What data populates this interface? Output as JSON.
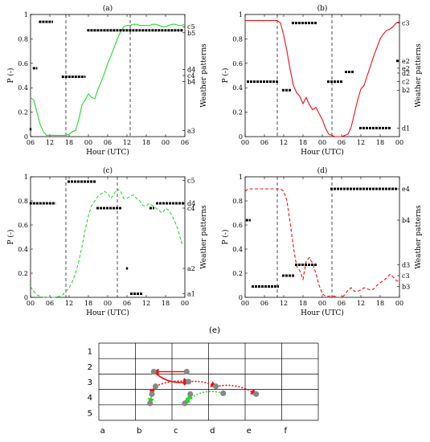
{
  "colors": {
    "green": "#22dd22",
    "red": "#ee1111",
    "black": "#000000",
    "dot": "#888888"
  },
  "chart_data": [
    {
      "type": "line",
      "title": "(a)",
      "line_style": "solid",
      "color": "#22dd22",
      "xlabel": "Hour (UTC)",
      "ylabel": "P (-)",
      "y2label": "Weather patterns",
      "xlim": [
        0,
        48
      ],
      "ylim": [
        0,
        1
      ],
      "xticks": [
        0,
        6,
        12,
        18,
        24,
        30,
        36,
        42,
        48
      ],
      "xticklabels": [
        "06",
        "12",
        "18",
        "00",
        "06",
        "12",
        "18",
        "00",
        "06"
      ],
      "yticks": [
        0,
        0.2,
        0.4,
        0.6,
        0.8,
        1
      ],
      "yticklabels": [
        "0",
        "0.2",
        "0.4",
        "0.6",
        "0.8",
        "1"
      ],
      "y2ticks": [
        0.05,
        0.45,
        0.5,
        0.55,
        0.85,
        0.9
      ],
      "y2ticklabels": [
        "a3",
        "b4",
        "c4",
        "d4",
        "b5",
        "c5"
      ],
      "vlines": [
        11,
        31
      ],
      "line": {
        "x": [
          0,
          1,
          2,
          3,
          4,
          5,
          6,
          7,
          8,
          9,
          10,
          11,
          12,
          13,
          14,
          15,
          16,
          17,
          18,
          19,
          20,
          21,
          22,
          23,
          24,
          25,
          26,
          27,
          28,
          29,
          30,
          31,
          32,
          33,
          34,
          35,
          36,
          37,
          38,
          39,
          40,
          41,
          42,
          43,
          44,
          45,
          46,
          47,
          48
        ],
        "y": [
          0.32,
          0.3,
          0.2,
          0.1,
          0.04,
          0.01,
          0.01,
          0.01,
          0.01,
          0.01,
          0.01,
          0.01,
          0.02,
          0.04,
          0.05,
          0.14,
          0.26,
          0.3,
          0.35,
          0.32,
          0.31,
          0.39,
          0.45,
          0.52,
          0.6,
          0.66,
          0.73,
          0.8,
          0.86,
          0.9,
          0.91,
          0.91,
          0.92,
          0.92,
          0.91,
          0.91,
          0.91,
          0.91,
          0.92,
          0.92,
          0.91,
          0.9,
          0.9,
          0.91,
          0.92,
          0.92,
          0.91,
          0.91,
          0.92
        ]
      },
      "patterns": [
        {
          "x0": -0.3,
          "x1": 0.3,
          "y": 0.06
        },
        {
          "x0": 0.7,
          "x1": 2.1,
          "y": 0.56
        },
        {
          "x0": 2.6,
          "x1": 7.0,
          "y": 0.94
        },
        {
          "x0": 9.7,
          "x1": 17.1,
          "y": 0.49
        },
        {
          "x0": 17.6,
          "x1": 47.4,
          "y": 0.87
        }
      ]
    },
    {
      "type": "line",
      "title": "(b)",
      "line_style": "solid",
      "color": "#ee1111",
      "xlabel": "Hour (UTC)",
      "ylabel": "P (-)",
      "y2label": "Weather patterns",
      "xlim": [
        0,
        48
      ],
      "ylim": [
        0,
        1
      ],
      "xticks": [
        0,
        6,
        12,
        18,
        24,
        30,
        36,
        42,
        48
      ],
      "xticklabels": [
        "00",
        "06",
        "12",
        "18",
        "00",
        "06",
        "12",
        "18",
        "00"
      ],
      "yticks": [
        0,
        0.2,
        0.4,
        0.6,
        0.8,
        1
      ],
      "yticklabels": [
        "0",
        "0.2",
        "0.4",
        "0.6",
        "0.8",
        "1"
      ],
      "y2ticks": [
        0.07,
        0.38,
        0.45,
        0.52,
        0.56,
        0.62,
        0.93
      ],
      "y2ticklabels": [
        "d1",
        "b2",
        "c2",
        "d2",
        "e2",
        "e2",
        "c3"
      ],
      "vlines": [
        10,
        27
      ],
      "line": {
        "x": [
          0,
          1,
          2,
          3,
          4,
          5,
          6,
          7,
          8,
          9,
          10,
          11,
          12,
          13,
          14,
          15,
          16,
          17,
          18,
          19,
          20,
          21,
          22,
          23,
          24,
          25,
          26,
          27,
          28,
          29,
          30,
          31,
          32,
          33,
          34,
          35,
          36,
          37,
          38,
          39,
          40,
          41,
          42,
          43,
          44,
          45,
          46,
          47,
          48
        ],
        "y": [
          0.95,
          0.95,
          0.95,
          0.95,
          0.95,
          0.95,
          0.95,
          0.95,
          0.95,
          0.95,
          0.95,
          0.93,
          0.83,
          0.7,
          0.55,
          0.42,
          0.36,
          0.33,
          0.27,
          0.32,
          0.26,
          0.22,
          0.24,
          0.19,
          0.14,
          0.07,
          0.02,
          0.01,
          0.0,
          0.0,
          0.0,
          0.01,
          0.02,
          0.08,
          0.19,
          0.3,
          0.39,
          0.42,
          0.5,
          0.58,
          0.66,
          0.73,
          0.8,
          0.84,
          0.87,
          0.88,
          0.9,
          0.93,
          0.94
        ]
      },
      "patterns": [
        {
          "x0": 0.5,
          "x1": 10.5,
          "y": 0.45
        },
        {
          "x0": 11.5,
          "x1": 14.5,
          "y": 0.38
        },
        {
          "x0": 14.5,
          "x1": 22.5,
          "y": 0.93
        },
        {
          "x0": 25.5,
          "x1": 30.5,
          "y": 0.45
        },
        {
          "x0": 31.0,
          "x1": 34.0,
          "y": 0.53
        },
        {
          "x0": 35.5,
          "x1": 45.5,
          "y": 0.07
        },
        {
          "x0": 47.0,
          "x1": 48.0,
          "y": 0.62
        }
      ]
    },
    {
      "type": "line",
      "title": "(c)",
      "line_style": "dashed",
      "color": "#22dd22",
      "xlabel": "Hour (UTC)",
      "ylabel": "P (-)",
      "y2label": "Weather patterns",
      "xlim": [
        0,
        48
      ],
      "ylim": [
        0,
        1
      ],
      "xticks": [
        0,
        6,
        12,
        18,
        24,
        30,
        36,
        42,
        48
      ],
      "xticklabels": [
        "00",
        "06",
        "12",
        "18",
        "00",
        "06",
        "12",
        "18",
        "00"
      ],
      "yticks": [
        0,
        0.2,
        0.4,
        0.6,
        0.8,
        1
      ],
      "yticklabels": [
        "0",
        "0.2",
        "0.4",
        "0.6",
        "0.8",
        "1"
      ],
      "y2ticks": [
        0.03,
        0.24,
        0.74,
        0.78,
        0.97
      ],
      "y2ticklabels": [
        "a1",
        "a2",
        "c4",
        "d4",
        "c5"
      ],
      "vlines": [
        11,
        27
      ],
      "line": {
        "x": [
          0,
          1,
          2,
          3,
          4,
          5,
          6,
          7,
          8,
          9,
          10,
          11,
          12,
          13,
          14,
          15,
          16,
          17,
          18,
          19,
          20,
          21,
          22,
          23,
          24,
          25,
          26,
          27,
          28,
          29,
          30,
          31,
          32,
          33,
          34,
          35,
          36,
          37,
          38,
          39,
          40,
          41,
          42,
          43,
          44,
          45,
          46,
          47,
          48
        ],
        "y": [
          0.09,
          0.05,
          0.02,
          0.01,
          0.0,
          0.0,
          0.0,
          0.0,
          0.0,
          0.01,
          0.02,
          0.05,
          0.08,
          0.13,
          0.2,
          0.3,
          0.42,
          0.56,
          0.68,
          0.76,
          0.8,
          0.84,
          0.86,
          0.88,
          0.86,
          0.82,
          0.86,
          0.9,
          0.88,
          0.82,
          0.82,
          0.84,
          0.85,
          0.82,
          0.8,
          0.76,
          0.76,
          0.78,
          0.76,
          0.74,
          0.72,
          0.7,
          0.74,
          0.72,
          0.68,
          0.62,
          0.55,
          0.45,
          0.46
        ]
      },
      "patterns": [
        {
          "x0": -0.3,
          "x1": 7.8,
          "y": 0.78
        },
        {
          "x0": 11.5,
          "x1": 20.5,
          "y": 0.96
        },
        {
          "x0": 20.5,
          "x1": 28.5,
          "y": 0.74
        },
        {
          "x0": 29.7,
          "x1": 30.3,
          "y": 0.24
        },
        {
          "x0": 31.0,
          "x1": 35.0,
          "y": 0.03
        },
        {
          "x0": 37.0,
          "x1": 38.5,
          "y": 0.74
        },
        {
          "x0": 39.0,
          "x1": 48.0,
          "y": 0.78
        }
      ]
    },
    {
      "type": "line",
      "title": "(d)",
      "line_style": "dashed",
      "color": "#ee1111",
      "xlabel": "Hour (UTC)",
      "ylabel": "P (-)",
      "y2label": "Weather patterns",
      "xlim": [
        0,
        48
      ],
      "ylim": [
        0,
        1
      ],
      "xticks": [
        0,
        6,
        12,
        18,
        24,
        30,
        36,
        42,
        48
      ],
      "xticklabels": [
        "00",
        "06",
        "12",
        "18",
        "00",
        "06",
        "12",
        "18",
        "00"
      ],
      "yticks": [
        0,
        0.2,
        0.4,
        0.6,
        0.8,
        1
      ],
      "yticklabels": [
        "0",
        "0.2",
        "0.4",
        "0.6",
        "0.8",
        "1"
      ],
      "y2ticks": [
        0.09,
        0.18,
        0.27,
        0.64,
        0.9
      ],
      "y2ticklabels": [
        "b3",
        "c3",
        "d3",
        "b4",
        "e4"
      ],
      "vlines": [
        10,
        27
      ],
      "line": {
        "x": [
          0,
          1,
          2,
          3,
          4,
          5,
          6,
          7,
          8,
          9,
          10,
          11,
          12,
          13,
          14,
          15,
          16,
          17,
          18,
          19,
          20,
          21,
          22,
          23,
          24,
          25,
          26,
          27,
          28,
          29,
          30,
          31,
          32,
          33,
          34,
          35,
          36,
          37,
          38,
          39,
          40,
          41,
          42,
          43,
          44,
          45,
          46,
          47,
          48
        ],
        "y": [
          0.88,
          0.9,
          0.9,
          0.9,
          0.9,
          0.9,
          0.9,
          0.9,
          0.9,
          0.9,
          0.9,
          0.9,
          0.88,
          0.8,
          0.62,
          0.42,
          0.26,
          0.22,
          0.15,
          0.3,
          0.33,
          0.28,
          0.2,
          0.1,
          0.03,
          0.01,
          0.01,
          0.01,
          0.01,
          0.0,
          0.0,
          0.02,
          0.06,
          0.08,
          0.05,
          0.05,
          0.06,
          0.08,
          0.07,
          0.06,
          0.07,
          0.1,
          0.12,
          0.14,
          0.16,
          0.19,
          0.17,
          0.14,
          0.13
        ]
      },
      "patterns": [
        {
          "x0": 0.2,
          "x1": 1.7,
          "y": 0.64
        },
        {
          "x0": 2.0,
          "x1": 10.5,
          "y": 0.09
        },
        {
          "x0": 11.5,
          "x1": 15.5,
          "y": 0.18
        },
        {
          "x0": 15.5,
          "x1": 22.5,
          "y": 0.27
        },
        {
          "x0": 26.5,
          "x1": 47.5,
          "y": 0.9
        }
      ]
    },
    {
      "type": "diagram",
      "title": "(e)",
      "columns": [
        "a",
        "b",
        "c",
        "d",
        "e",
        "f"
      ],
      "rows": [
        "1",
        "2",
        "3",
        "4",
        "5"
      ],
      "points": [
        {
          "col": 1.5,
          "row": 2.35
        },
        {
          "col": 2.4,
          "row": 2.35
        },
        {
          "col": 2.45,
          "row": 3.0
        },
        {
          "col": 1.55,
          "row": 3.3
        },
        {
          "col": 3.2,
          "row": 3.3
        },
        {
          "col": 4.3,
          "row": 3.8
        },
        {
          "col": 1.45,
          "row": 3.8
        },
        {
          "col": 2.5,
          "row": 3.8
        },
        {
          "col": 3.4,
          "row": 3.75
        },
        {
          "col": 1.4,
          "row": 4.4
        },
        {
          "col": 2.35,
          "row": 4.4
        }
      ],
      "arrows": [
        {
          "from": [
            2.4,
            2.35
          ],
          "to": [
            1.5,
            2.35
          ],
          "color": "#ee1111",
          "style": "solid",
          "curve": 0
        },
        {
          "from": [
            1.5,
            2.35
          ],
          "to": [
            2.45,
            3.0
          ],
          "color": "#ee1111",
          "style": "solid",
          "curve": 0.25
        },
        {
          "from": [
            2.45,
            3.0
          ],
          "to": [
            3.2,
            3.3
          ],
          "color": "#ee1111",
          "style": "dotted",
          "curve": -0.15
        },
        {
          "from": [
            3.2,
            3.3
          ],
          "to": [
            4.3,
            3.8
          ],
          "color": "#ee1111",
          "style": "dotted",
          "curve": -0.2
        },
        {
          "from": [
            1.55,
            3.3
          ],
          "to": [
            1.45,
            3.8
          ],
          "color": "#ee1111",
          "style": "solid",
          "curve": 0.2
        },
        {
          "from": [
            1.55,
            3.3
          ],
          "to": [
            2.45,
            3.0
          ],
          "color": "#ee1111",
          "style": "dotted",
          "curve": -0.15
        },
        {
          "from": [
            1.45,
            3.8
          ],
          "to": [
            1.4,
            4.4
          ],
          "color": "#22dd22",
          "style": "solid",
          "curve": 0
        },
        {
          "from": [
            3.4,
            3.75
          ],
          "to": [
            2.35,
            4.4
          ],
          "color": "#22dd22",
          "style": "dotted",
          "curve": 0.3
        },
        {
          "from": [
            2.35,
            4.4
          ],
          "to": [
            2.5,
            3.8
          ],
          "color": "#22dd22",
          "style": "dotted",
          "curve": 0.2
        }
      ]
    }
  ]
}
